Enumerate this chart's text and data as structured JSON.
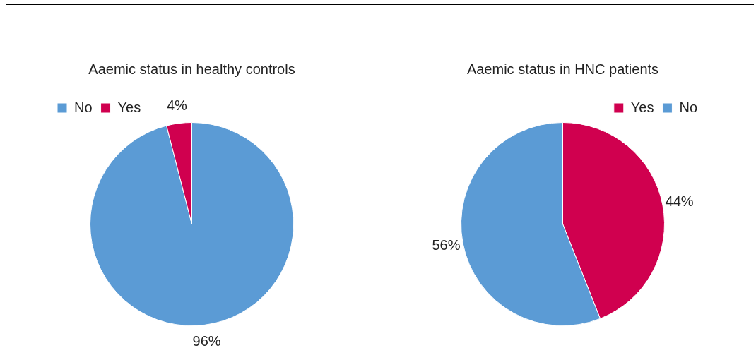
{
  "chart_data": [
    {
      "type": "pie",
      "title": "Aaemic status in healthy controls",
      "categories": [
        "No",
        "Yes"
      ],
      "values": [
        96,
        4
      ],
      "colors": [
        "#5b9bd5",
        "#d0004f"
      ],
      "value_labels": [
        "96%",
        "4%"
      ],
      "legend": "top left"
    },
    {
      "type": "pie",
      "title": "Aaemic status in HNC patients",
      "categories": [
        "Yes",
        "No"
      ],
      "values": [
        44,
        56
      ],
      "colors": [
        "#d0004f",
        "#5b9bd5"
      ],
      "value_labels": [
        "44%",
        "56%"
      ],
      "legend": "top right"
    }
  ]
}
